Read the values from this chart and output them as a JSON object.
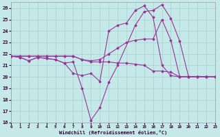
{
  "xlabel": "Windchill (Refroidissement éolien,°C)",
  "bg_color": "#c5e8e8",
  "grid_color": "#a8d0d0",
  "line_color": "#993399",
  "xlim": [
    0,
    23
  ],
  "ylim": [
    16,
    26.5
  ],
  "yticks": [
    16,
    17,
    18,
    19,
    20,
    21,
    22,
    23,
    24,
    25,
    26
  ],
  "xticks": [
    0,
    1,
    2,
    3,
    4,
    5,
    6,
    7,
    8,
    9,
    10,
    11,
    12,
    13,
    14,
    15,
    16,
    17,
    18,
    19,
    20,
    21,
    22,
    23
  ],
  "series": [
    {
      "x": [
        0,
        1,
        2,
        3,
        4,
        5,
        6,
        7,
        8,
        9,
        10,
        11,
        12,
        14,
        15,
        16,
        17,
        18,
        19,
        20,
        21,
        22,
        23
      ],
      "y": [
        21.8,
        21.7,
        21.4,
        21.7,
        21.6,
        21.5,
        21.2,
        21.3,
        19.0,
        16.2,
        17.3,
        19.5,
        21.0,
        24.5,
        25.7,
        25.8,
        26.3,
        25.1,
        23.1,
        20.0,
        20.0,
        20.0,
        20.0
      ]
    },
    {
      "x": [
        0,
        1,
        2,
        3,
        4,
        5,
        6,
        7,
        8,
        9,
        10,
        11,
        12,
        13,
        14,
        15,
        16,
        17,
        18,
        19,
        20,
        21,
        22
      ],
      "y": [
        21.8,
        21.7,
        21.4,
        21.7,
        21.6,
        21.5,
        21.2,
        20.3,
        20.1,
        20.3,
        19.6,
        24.0,
        24.5,
        24.7,
        25.8,
        26.2,
        25.2,
        21.0,
        20.1,
        20.0,
        20.0,
        20.0,
        20.0
      ]
    },
    {
      "x": [
        0,
        1,
        2,
        3,
        4,
        5,
        6,
        7,
        8,
        9,
        10,
        11,
        12,
        13,
        14,
        15,
        16,
        17,
        18,
        19,
        20,
        21,
        22,
        23
      ],
      "y": [
        21.8,
        21.8,
        21.8,
        21.8,
        21.8,
        21.8,
        21.8,
        21.8,
        21.5,
        21.4,
        21.5,
        22.0,
        22.5,
        23.0,
        23.2,
        23.3,
        23.3,
        25.0,
        23.2,
        20.0,
        20.0,
        20.0,
        20.0,
        20.0
      ]
    },
    {
      "x": [
        0,
        1,
        2,
        3,
        4,
        5,
        6,
        7,
        8,
        9,
        10,
        11,
        12,
        13,
        14,
        15,
        16,
        17,
        18,
        19,
        20,
        21,
        22,
        23
      ],
      "y": [
        21.8,
        21.8,
        21.8,
        21.8,
        21.8,
        21.8,
        21.8,
        21.8,
        21.5,
        21.3,
        21.3,
        21.3,
        21.2,
        21.2,
        21.1,
        21.0,
        20.5,
        20.5,
        20.4,
        20.0,
        20.0,
        20.0,
        20.0,
        20.0
      ]
    }
  ]
}
